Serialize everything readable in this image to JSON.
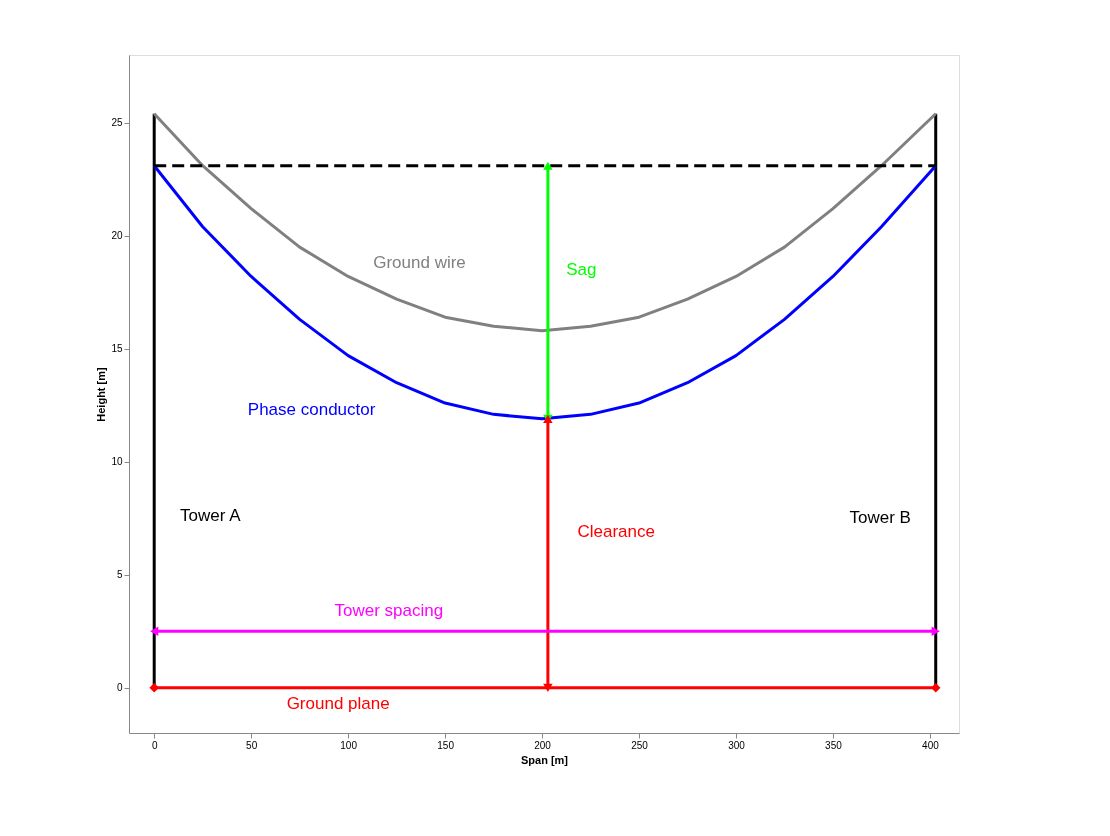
{
  "chart_data": {
    "type": "line",
    "xlabel": "Span [m]",
    "ylabel": "Height [m]",
    "xlim": [
      -13,
      415
    ],
    "ylim": [
      -2,
      28
    ],
    "xticks": [
      0,
      50,
      100,
      150,
      200,
      250,
      300,
      350,
      400
    ],
    "yticks": [
      0,
      5,
      10,
      15,
      20,
      25
    ],
    "grid": false,
    "line_style": "solid",
    "series": [
      {
        "name": "Tower A",
        "color": "#000000",
        "x": [
          0,
          0
        ],
        "values": [
          0,
          25.4
        ]
      },
      {
        "name": "Tower B",
        "color": "#000000",
        "x": [
          403,
          403
        ],
        "values": [
          0,
          25.4
        ]
      },
      {
        "name": "Ground wire",
        "color": "#808080",
        "x": [
          0,
          25,
          50,
          75,
          100,
          125,
          150,
          175,
          200,
          225,
          250,
          275,
          300,
          325,
          350,
          375,
          403
        ],
        "values": [
          25.4,
          23.1,
          21.2,
          19.5,
          18.2,
          17.2,
          16.4,
          16.0,
          15.8,
          16.0,
          16.4,
          17.2,
          18.2,
          19.5,
          21.2,
          23.1,
          25.4
        ]
      },
      {
        "name": "Phase conductor",
        "color": "#0000ff",
        "x": [
          0,
          25,
          50,
          75,
          100,
          125,
          150,
          175,
          200,
          225,
          250,
          275,
          300,
          325,
          350,
          375,
          403
        ],
        "values": [
          23.1,
          20.4,
          18.2,
          16.3,
          14.7,
          13.5,
          12.6,
          12.1,
          11.9,
          12.1,
          12.6,
          13.5,
          14.7,
          16.3,
          18.2,
          20.4,
          23.1
        ]
      },
      {
        "name": "Sag",
        "color": "#00ff00",
        "x": [
          203,
          203
        ],
        "values": [
          23.1,
          11.9
        ],
        "marker": "triangle"
      },
      {
        "name": "Clearance",
        "color": "#ff0000",
        "x": [
          203,
          203
        ],
        "values": [
          11.9,
          0
        ],
        "marker": "triangle"
      },
      {
        "name": "Tower spacing",
        "color": "#ff00ff",
        "x": [
          0,
          403
        ],
        "values": [
          2.5,
          2.5
        ],
        "marker": "triangle"
      },
      {
        "name": "Ground plane",
        "color": "#ff0000",
        "x": [
          0,
          403
        ],
        "values": [
          0,
          0
        ],
        "marker": "diamond"
      },
      {
        "color": "#000000",
        "x": [
          0,
          403
        ],
        "values": [
          23.1,
          23.1
        ],
        "line_style": "dashed"
      }
    ]
  }
}
